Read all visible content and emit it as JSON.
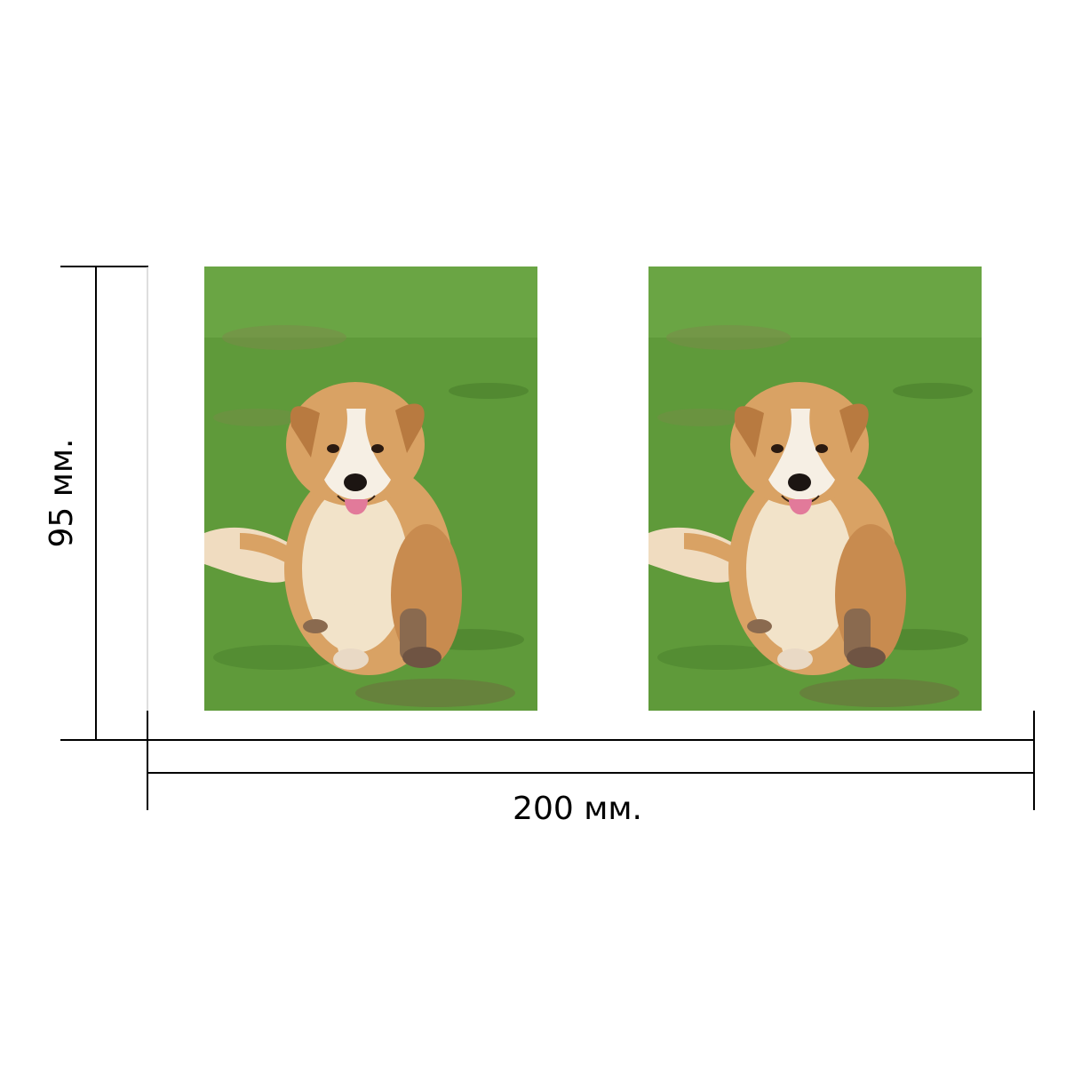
{
  "dimensions": {
    "height_label": "95 мм.",
    "width_label": "200 мм."
  },
  "photos": [
    {
      "subject": "dog-photo"
    },
    {
      "subject": "dog-photo"
    }
  ],
  "colors": {
    "line": "#000000",
    "grass": "#5f9a3a",
    "grass_dark": "#4a7f2c",
    "fur": "#d9a264",
    "fur_light": "#f2e3c9",
    "fur_dark": "#a86a35",
    "tongue": "#e27a9a",
    "nose": "#1c1512"
  }
}
